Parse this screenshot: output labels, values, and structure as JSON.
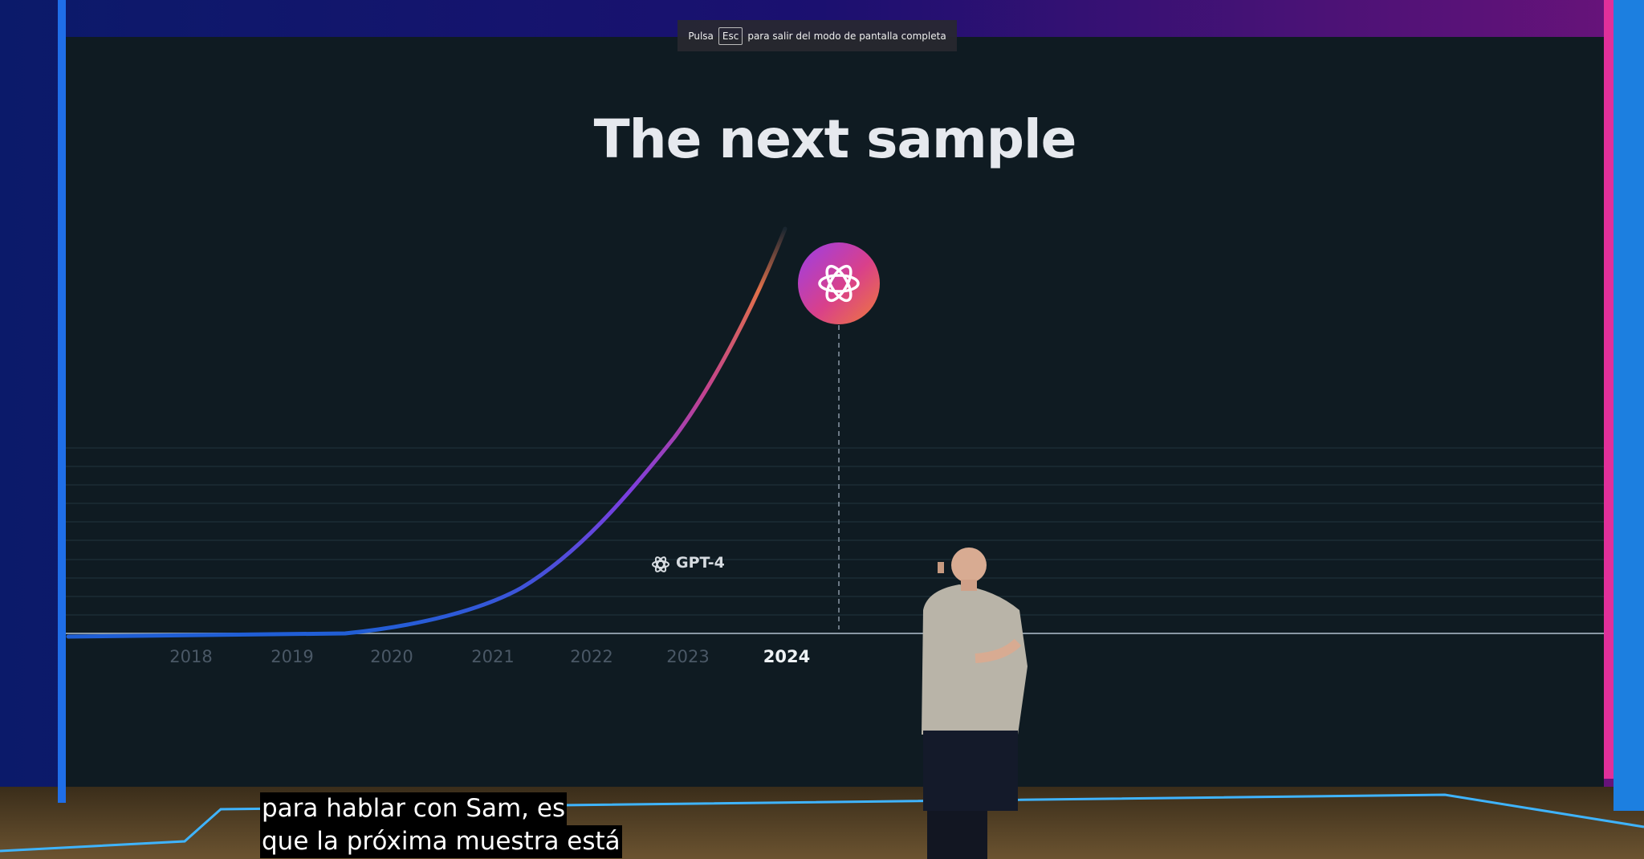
{
  "fullscreen_notice": {
    "prefix": "Pulsa",
    "key": "Esc",
    "suffix": "para salir del modo de pantalla completa"
  },
  "slide": {
    "title": "The next sample",
    "years": [
      "2018",
      "2019",
      "2020",
      "2021",
      "2022",
      "2023",
      "2024"
    ],
    "model_label": "GPT-4"
  },
  "subtitles": [
    "para hablar con Sam, es",
    "que la próxima muestra está"
  ]
}
